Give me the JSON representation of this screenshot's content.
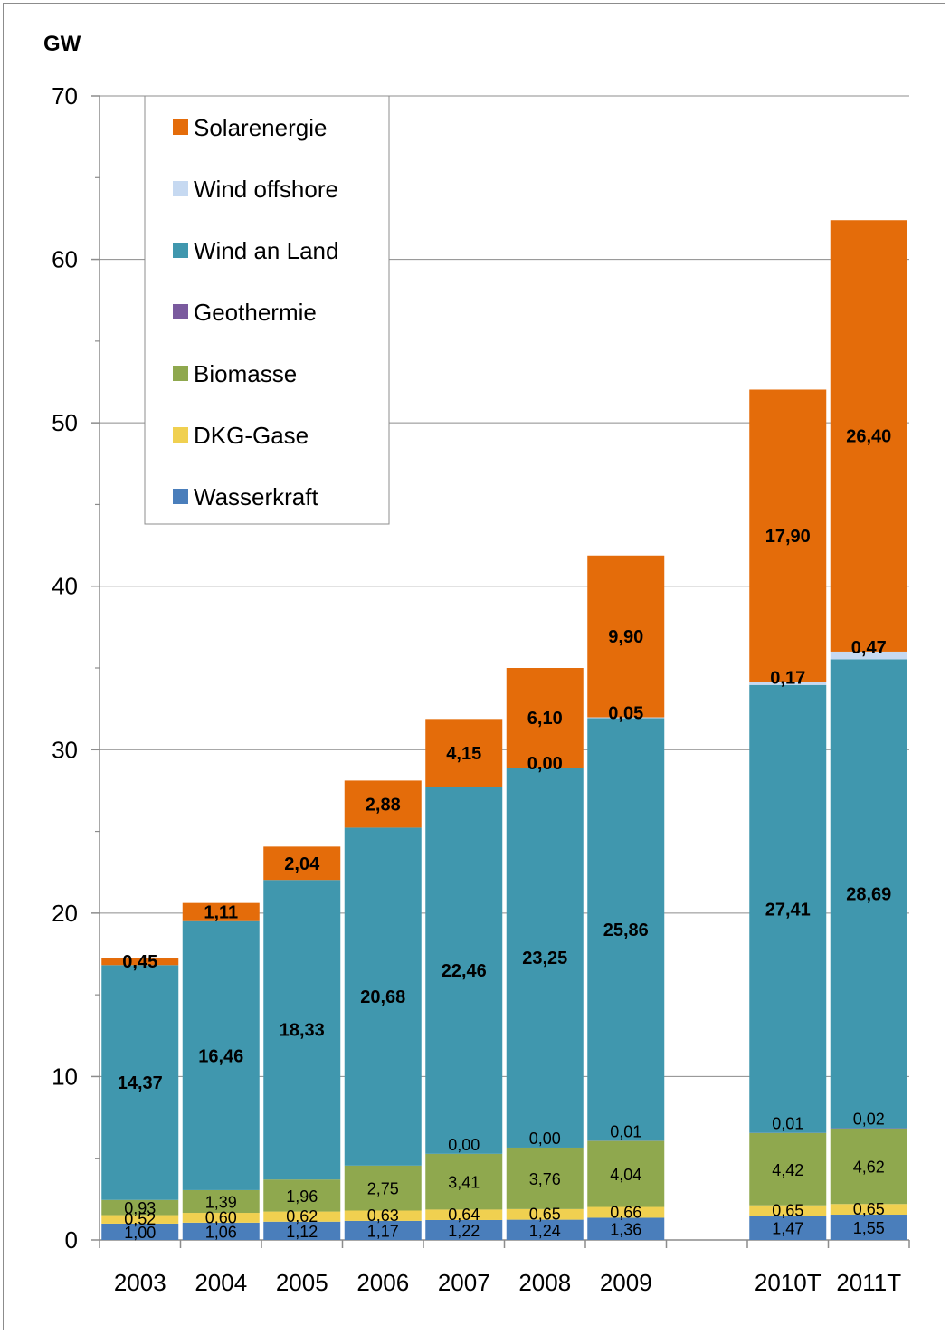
{
  "chart_data": {
    "type": "bar",
    "stacked": true,
    "unit_label": "GW",
    "title": "",
    "xlabel": "",
    "ylabel": "GW",
    "ylim": [
      0,
      70
    ],
    "y_ticks": [
      0,
      10,
      20,
      30,
      40,
      50,
      60,
      70
    ],
    "grid": "horizontal gridlines at 10, 20, 30, 40, 50, 60, 70",
    "legend_position": "top-left",
    "categories": [
      "2003",
      "2004",
      "2005",
      "2006",
      "2007",
      "2008",
      "2009",
      "2010T",
      "2011T"
    ],
    "category_slots": [
      0,
      1,
      2,
      3,
      4,
      5,
      6,
      8,
      9
    ],
    "slot_count": 10,
    "series": [
      {
        "name": "Wasserkraft",
        "color": "#4A7EBB",
        "values": [
          1.0,
          1.06,
          1.12,
          1.17,
          1.22,
          1.24,
          1.36,
          1.47,
          1.55
        ],
        "labels": [
          "1,00",
          "1,06",
          "1,12",
          "1,17",
          "1,22",
          "1,24",
          "1,36",
          "1,47",
          "1,55"
        ]
      },
      {
        "name": "DKG-Gase",
        "color": "#F0D050",
        "values": [
          0.52,
          0.6,
          0.62,
          0.63,
          0.64,
          0.65,
          0.66,
          0.65,
          0.65
        ],
        "labels": [
          "0,52",
          "0,60",
          "0,62",
          "0,63",
          "0,64",
          "0,65",
          "0,66",
          "0,65",
          "0,65"
        ]
      },
      {
        "name": "Biomasse",
        "color": "#8FA84E",
        "values": [
          0.93,
          1.39,
          1.96,
          2.75,
          3.41,
          3.76,
          4.04,
          4.42,
          4.62
        ],
        "labels": [
          "0,93",
          "1,39",
          "1,96",
          "2,75",
          "3,41",
          "3,76",
          "4,04",
          "4,42",
          "4,62"
        ]
      },
      {
        "name": "Geothermie",
        "color": "#7A5A9E",
        "values": [
          null,
          null,
          null,
          null,
          0.0,
          0.0,
          0.01,
          0.01,
          0.02
        ],
        "labels": [
          "",
          "",
          "",
          "",
          "0,00",
          "0,00",
          "0,01",
          "0,01",
          "0,02"
        ]
      },
      {
        "name": "Wind an Land",
        "color": "#4097AE",
        "values": [
          14.37,
          16.46,
          18.33,
          20.68,
          22.46,
          23.25,
          25.86,
          27.41,
          28.69
        ],
        "labels": [
          "14,37",
          "16,46",
          "18,33",
          "20,68",
          "22,46",
          "23,25",
          "25,86",
          "27,41",
          "28,69"
        ]
      },
      {
        "name": "Wind offshore",
        "color": "#C6D9F1",
        "values": [
          null,
          null,
          null,
          null,
          null,
          0.0,
          0.05,
          0.17,
          0.47
        ],
        "labels": [
          "",
          "",
          "",
          "",
          "",
          "0,00",
          "0,05",
          "0,17",
          "0,47"
        ]
      },
      {
        "name": "Solarenergie",
        "color": "#E46C0A",
        "values": [
          0.45,
          1.11,
          2.04,
          2.88,
          4.15,
          6.1,
          9.9,
          17.9,
          26.4
        ],
        "labels": [
          "0,45",
          "1,11",
          "2,04",
          "2,88",
          "4,15",
          "6,10",
          "9,90",
          "17,90",
          "26,40"
        ]
      }
    ],
    "legend_order": [
      "Solarenergie",
      "Wind offshore",
      "Wind an Land",
      "Geothermie",
      "Biomasse",
      "DKG-Gase",
      "Wasserkraft"
    ]
  }
}
